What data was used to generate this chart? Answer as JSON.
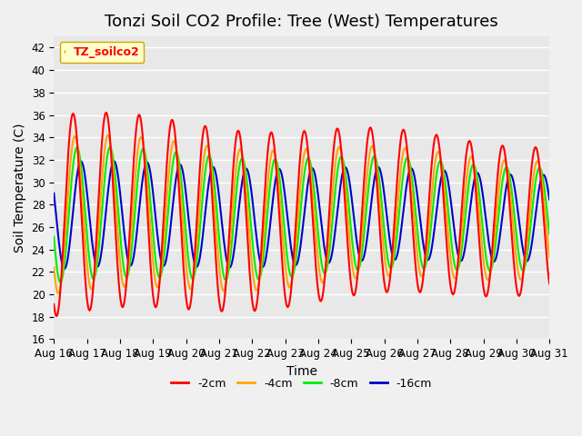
{
  "title": "Tonzi Soil CO2 Profile: Tree (West) Temperatures",
  "ylabel": "Soil Temperature (C)",
  "xlabel": "Time",
  "ylim": [
    16,
    43
  ],
  "yticks": [
    16,
    18,
    20,
    22,
    24,
    26,
    28,
    30,
    32,
    34,
    36,
    38,
    40,
    42
  ],
  "xtick_labels": [
    "Aug 16",
    "Aug 17",
    "Aug 18",
    "Aug 19",
    "Aug 20",
    "Aug 21",
    "Aug 22",
    "Aug 23",
    "Aug 24",
    "Aug 25",
    "Aug 26",
    "Aug 27",
    "Aug 28",
    "Aug 29",
    "Aug 30",
    "Aug 31"
  ],
  "legend_label": "TZ_soilco2",
  "series": {
    "neg2cm": {
      "color": "#ff0000",
      "label": "-2cm",
      "lw": 1.5
    },
    "neg4cm": {
      "color": "#ffa500",
      "label": "-4cm",
      "lw": 1.5
    },
    "neg8cm": {
      "color": "#00ee00",
      "label": "-8cm",
      "lw": 1.5
    },
    "neg16cm": {
      "color": "#0000cc",
      "label": "-16cm",
      "lw": 1.5
    }
  },
  "plot_bg_color": "#e8e8e8",
  "fig_bg_color": "#f0f0f0",
  "legend_box_color": "#ffffcc",
  "legend_box_edge": "#ccaa00",
  "title_fontsize": 13,
  "axis_fontsize": 10,
  "tick_fontsize": 8.5
}
